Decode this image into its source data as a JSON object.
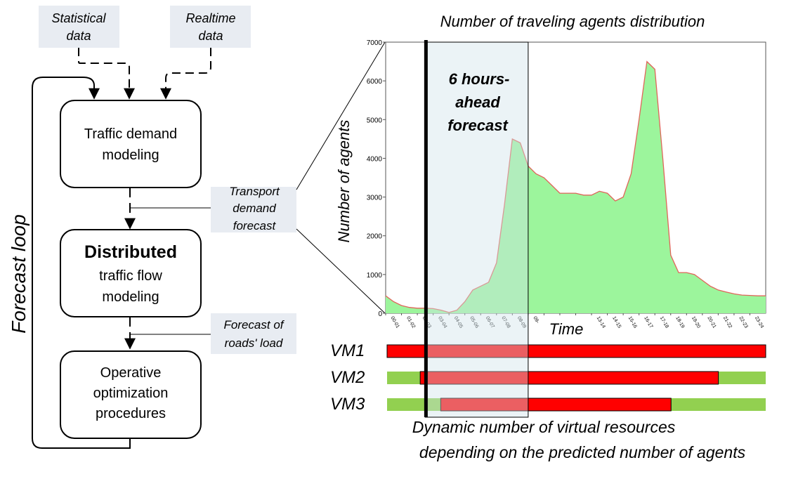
{
  "inputs": {
    "statistical": [
      "Statistical",
      "data"
    ],
    "realtime": [
      "Realtime",
      "data"
    ]
  },
  "boxes": {
    "demand": [
      "Traffic demand",
      "modeling"
    ],
    "distributed_title": "Distributed",
    "distributed": [
      "traffic flow",
      "modeling"
    ],
    "operative": [
      "Operative",
      "optimization",
      "procedures"
    ]
  },
  "notes": {
    "transport_forecast": [
      "Transport",
      "demand",
      "forecast"
    ],
    "roads_load": [
      "Forecast of",
      "roads' load"
    ]
  },
  "loop_label": "Forecast loop",
  "chart_data": {
    "type": "area",
    "title": "Number of traveling agents distribution",
    "xlabel": "Time",
    "ylabel": "Number of agents",
    "ylim": [
      0,
      7000
    ],
    "yticks": [
      0,
      1000,
      2000,
      3000,
      4000,
      5000,
      6000,
      7000
    ],
    "x_ticks": [
      "00-01",
      "01-02",
      "02-03",
      "03-04",
      "04-05",
      "05-06",
      "06-07",
      "07-08",
      "08-09",
      "09-",
      "",
      "",
      "",
      "13-14",
      "14-15",
      "15-16",
      "16-17",
      "17-18",
      "18-19",
      "19-20",
      "20-21",
      "21-22",
      "22-23",
      "23-24"
    ],
    "x": [
      0,
      0.5,
      1,
      1.5,
      2,
      2.5,
      3,
      3.5,
      4,
      4.5,
      5,
      5.5,
      6,
      6.5,
      7,
      7.5,
      8,
      8.5,
      9,
      9.5,
      10,
      10.5,
      11,
      11.5,
      12,
      12.5,
      13,
      13.5,
      14,
      14.5,
      15,
      15.5,
      16,
      16.5,
      17,
      17.5,
      18,
      18.5,
      19,
      19.5,
      20,
      20.5,
      21,
      21.5,
      22,
      22.5,
      23,
      23.5,
      24
    ],
    "values": [
      450,
      300,
      200,
      150,
      130,
      130,
      120,
      80,
      20,
      80,
      300,
      600,
      700,
      800,
      1300,
      2800,
      4500,
      4400,
      3800,
      3600,
      3500,
      3300,
      3100,
      3100,
      3100,
      3050,
      3050,
      3150,
      3100,
      2900,
      3000,
      3600,
      5000,
      6500,
      6300,
      4000,
      1500,
      1050,
      1050,
      1000,
      850,
      700,
      600,
      550,
      500,
      470,
      460,
      450,
      450
    ],
    "colors": {
      "fill": "#9cf59c",
      "line": "#e0655a"
    },
    "forecast_label": [
      "6 hours-",
      "ahead",
      "forecast"
    ],
    "forecast_window": [
      2.5,
      9
    ]
  },
  "vms": {
    "caption": [
      "Dynamic number of virtual resources",
      "depending on the predicted number of agents"
    ],
    "rows": [
      {
        "name": "VM1",
        "active": [
          0,
          24
        ]
      },
      {
        "name": "VM2",
        "active": [
          2.1,
          21
        ]
      },
      {
        "name": "VM3",
        "active": [
          3.4,
          18
        ]
      }
    ],
    "colors": {
      "active": "#ff0000",
      "idle": "#92d050"
    }
  }
}
